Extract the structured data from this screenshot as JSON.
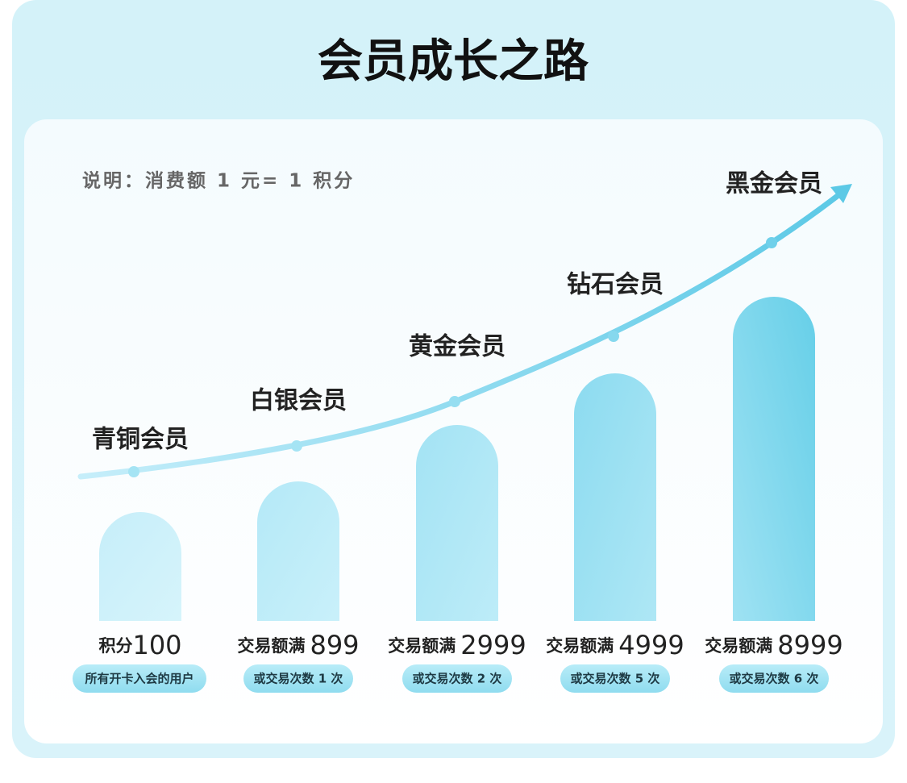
{
  "header": {
    "title": "会员成长之路"
  },
  "note": "说明：消费额 1 元= 1 积分",
  "tiers": [
    {
      "name": "青铜会员",
      "label": "积分",
      "amount": "100",
      "badge": "所有开卡入会的用户"
    },
    {
      "name": "白银会员",
      "label": "交易额满",
      "amount": "899",
      "badge": "或交易次数 1 次"
    },
    {
      "name": "黄金会员",
      "label": "交易额满",
      "amount": "2999",
      "badge": "或交易次数 2 次"
    },
    {
      "name": "钻石会员",
      "label": "交易额满",
      "amount": "4999",
      "badge": "或交易次数 5 次"
    },
    {
      "name": "黑金会员",
      "label": "交易额满",
      "amount": "8999",
      "badge": "或交易次数 6 次"
    }
  ]
}
